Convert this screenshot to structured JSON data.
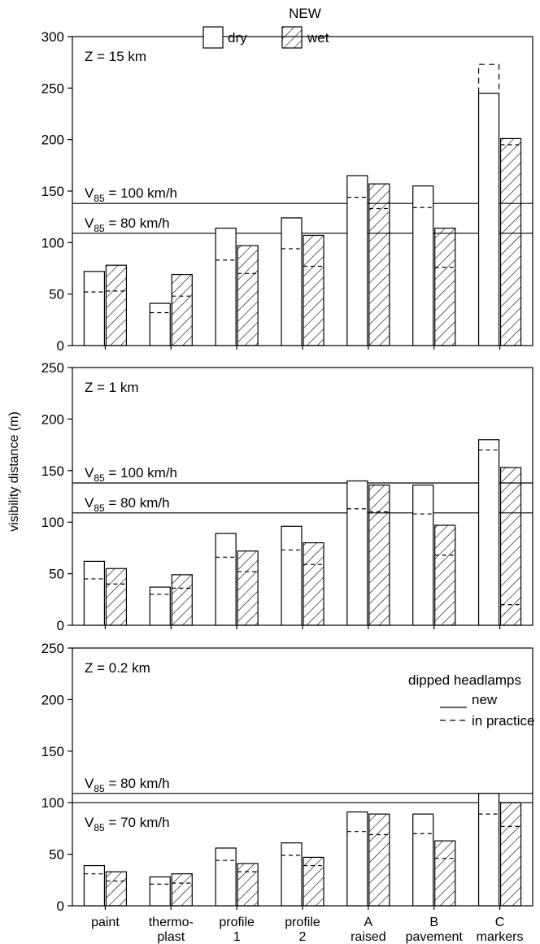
{
  "chart_data": {
    "type": "bar",
    "title": "NEW",
    "ylabel": "visibility distance (m)",
    "categories": [
      [
        "paint"
      ],
      [
        "thermo-",
        "plast"
      ],
      [
        "profile",
        "1"
      ],
      [
        "profile",
        "2"
      ],
      [
        "A",
        "raised"
      ],
      [
        "B",
        "pavement"
      ],
      [
        "C",
        "markers"
      ]
    ],
    "legend_dry": "dry",
    "legend_wet": "wet",
    "legend_lines_title": "dipped headlamps",
    "legend_line_new": "new",
    "legend_line_practice": "in practice",
    "panels": [
      {
        "label": "Z = 15 km",
        "ylim": [
          0,
          300
        ],
        "yticks": [
          0,
          50,
          100,
          150,
          200,
          250,
          300
        ],
        "speed_lines": [
          {
            "value": 138,
            "label_prefix": "V",
            "label_sub": "85",
            "label_suffix": " = 100 km/h"
          },
          {
            "value": 109,
            "label_prefix": "V",
            "label_sub": "85",
            "label_suffix": " = 80 km/h"
          }
        ],
        "dry_new": [
          72,
          41,
          114,
          124,
          165,
          155,
          245
        ],
        "dry_practice": [
          52,
          32,
          83,
          94,
          144,
          134,
          273
        ],
        "wet_new": [
          78,
          69,
          97,
          107,
          157,
          114,
          201
        ],
        "wet_practice": [
          53,
          48,
          70,
          77,
          133,
          76,
          195
        ]
      },
      {
        "label": "Z = 1 km",
        "ylim": [
          0,
          250
        ],
        "yticks": [
          0,
          50,
          100,
          150,
          200,
          250
        ],
        "speed_lines": [
          {
            "value": 138,
            "label_prefix": "V",
            "label_sub": "85",
            "label_suffix": " = 100 km/h"
          },
          {
            "value": 109,
            "label_prefix": "V",
            "label_sub": "85",
            "label_suffix": " = 80 km/h"
          }
        ],
        "dry_new": [
          62,
          37,
          89,
          96,
          140,
          136,
          180
        ],
        "dry_practice": [
          45,
          30,
          66,
          73,
          113,
          108,
          170
        ],
        "wet_new": [
          55,
          49,
          72,
          80,
          136,
          97,
          153
        ],
        "wet_practice": [
          40,
          36,
          52,
          59,
          110,
          68,
          20
        ]
      },
      {
        "label": "Z = 0.2 km",
        "ylim": [
          0,
          250
        ],
        "yticks": [
          0,
          50,
          100,
          150,
          200,
          250
        ],
        "speed_lines": [
          {
            "value": 109,
            "label_prefix": "V",
            "label_sub": "85",
            "label_suffix": " = 80 km/h"
          },
          {
            "value": 100,
            "label_prefix": "V",
            "label_sub": "85",
            "label_suffix": " = 70 km/h"
          }
        ],
        "dry_new": [
          39,
          28,
          56,
          61,
          91,
          89,
          109
        ],
        "dry_practice": [
          31,
          21,
          44,
          49,
          72,
          70,
          89
        ],
        "wet_new": [
          33,
          31,
          41,
          47,
          89,
          63,
          100
        ],
        "wet_practice": [
          24,
          22,
          33,
          39,
          69,
          46,
          77
        ]
      }
    ]
  }
}
